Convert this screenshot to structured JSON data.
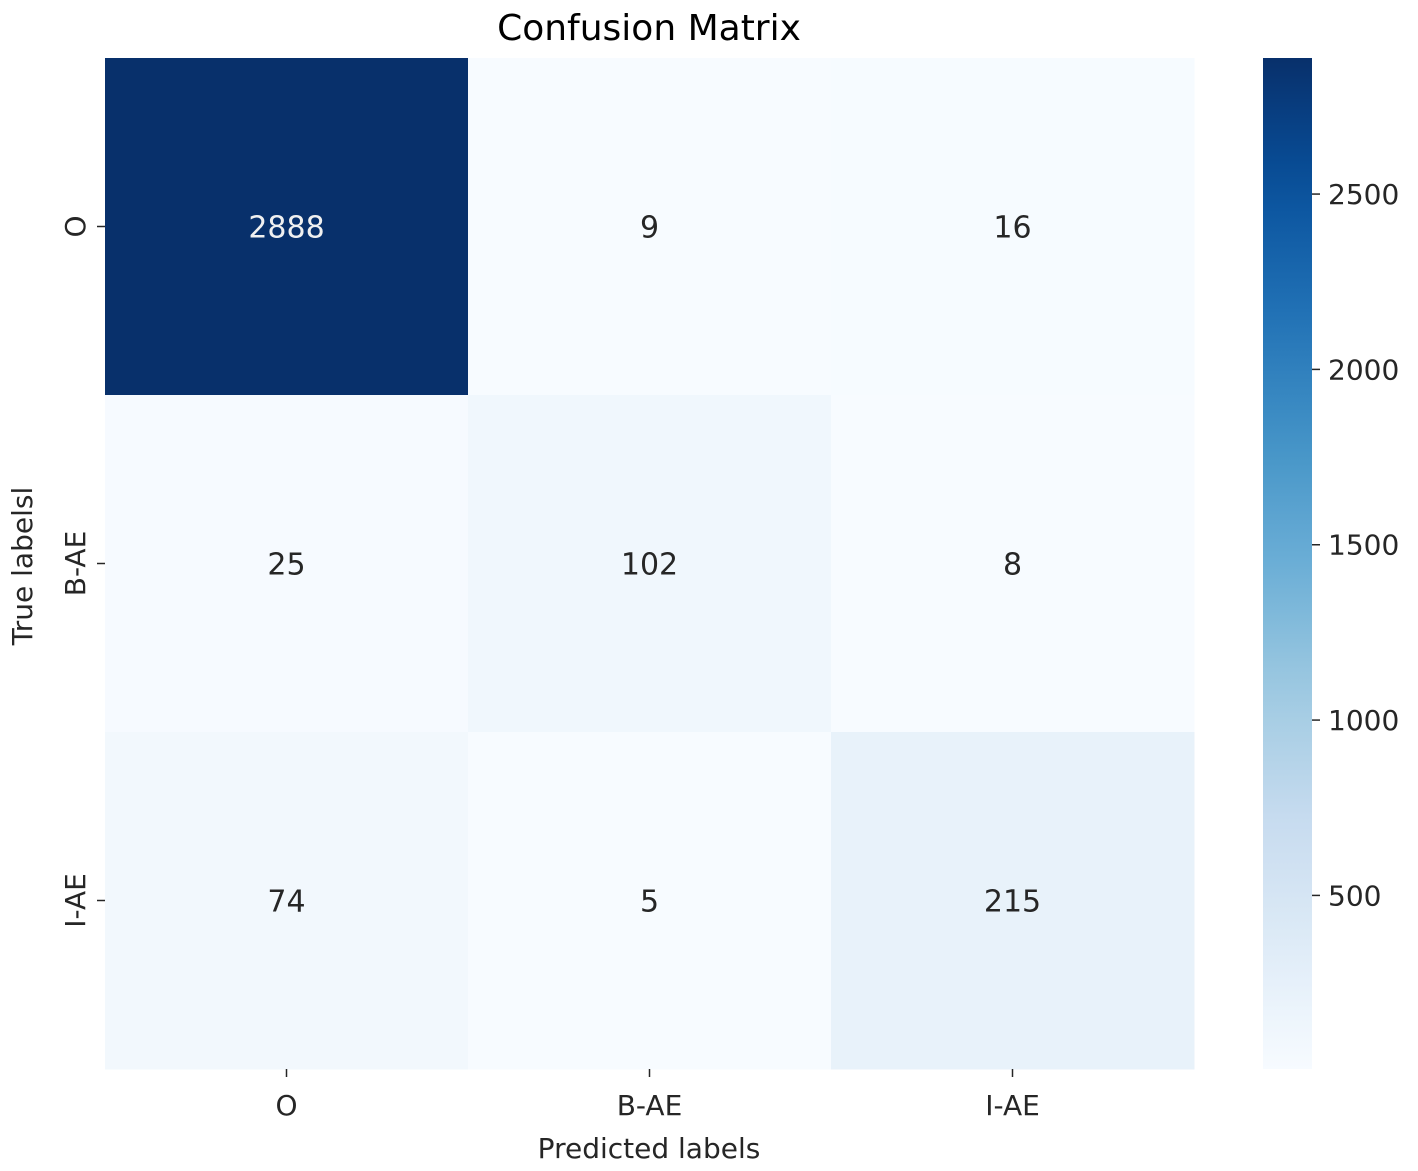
{
  "chart_data": {
    "type": "heatmap",
    "title": "Confusion Matrix",
    "xlabel": "Predicted labels",
    "ylabel": "True labelsl",
    "x_categories": [
      "O",
      "B-AE",
      "I-AE"
    ],
    "y_categories": [
      "O",
      "B-AE",
      "I-AE"
    ],
    "values": [
      [
        2888,
        9,
        16
      ],
      [
        25,
        102,
        8
      ],
      [
        74,
        5,
        215
      ]
    ],
    "colormap": "Blues",
    "colorbar": {
      "min": 5,
      "max": 2888,
      "ticks": [
        500,
        1000,
        1500,
        2000,
        2500
      ]
    },
    "colors": {
      "low": "#f7fbff",
      "high": "#08306b",
      "text_dark": "#262626",
      "text_light": "#f0f0f0"
    }
  }
}
